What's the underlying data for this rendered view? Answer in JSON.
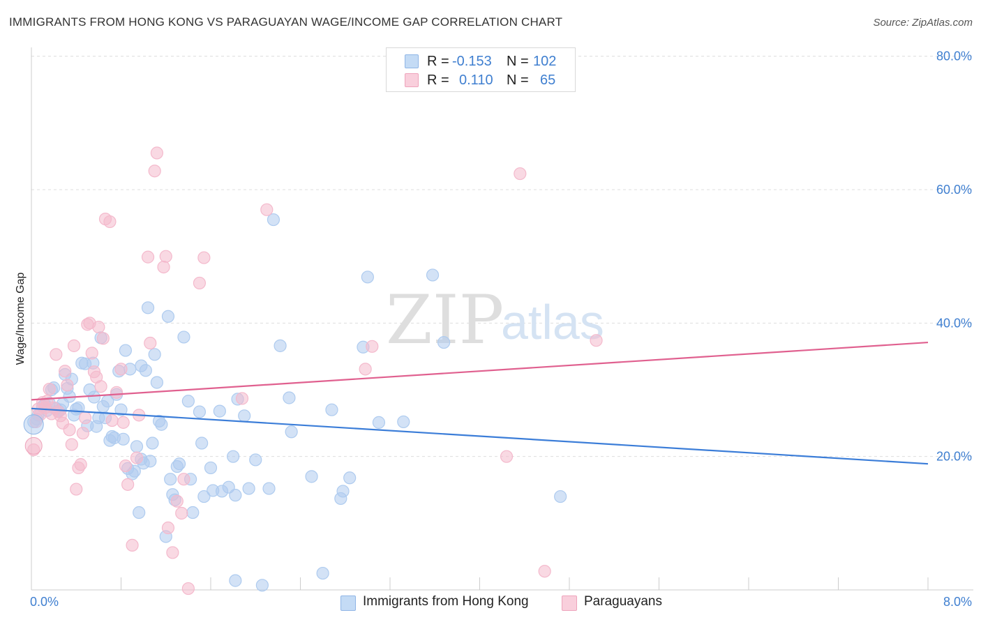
{
  "header": {
    "title": "IMMIGRANTS FROM HONG KONG VS PARAGUAYAN WAGE/INCOME GAP CORRELATION CHART",
    "source": "Source: ZipAtlas.com"
  },
  "watermark": {
    "zip": "ZIP",
    "atlas": "atlas"
  },
  "stats": {
    "rows": [
      {
        "r_label": "R =",
        "r_value": "-0.153",
        "n_label": "N =",
        "n_value": "102",
        "color": "#a9c8ef"
      },
      {
        "r_label": "R =",
        "r_value": "0.110",
        "n_label": "N =",
        "n_value": "65",
        "color": "#f4b3c8"
      }
    ]
  },
  "legend": {
    "items": [
      {
        "label": "Immigrants from Hong Kong",
        "color": "#a9c8ef"
      },
      {
        "label": "Paraguayans",
        "color": "#f4b3c8"
      }
    ]
  },
  "chart_data": {
    "type": "scatter",
    "title": "IMMIGRANTS FROM HONG KONG VS PARAGUAYAN WAGE/INCOME GAP CORRELATION CHART",
    "xlabel": "",
    "ylabel": "Wage/Income Gap",
    "xlim": [
      0,
      8
    ],
    "ylim": [
      0,
      80
    ],
    "x_tick_labels": [
      "0.0%",
      "8.0%"
    ],
    "y_tick_labels": [
      "20.0%",
      "40.0%",
      "60.0%",
      "80.0%"
    ],
    "y_ticks": [
      20,
      40,
      60,
      80
    ],
    "grid": true,
    "series": [
      {
        "name": "Immigrants from Hong Kong",
        "color": "#3b7dd8",
        "fill": "#aecbef",
        "trend": {
          "x": [
            0,
            8
          ],
          "y": [
            27.2,
            18.9
          ]
        },
        "points": [
          [
            0.02,
            25.2
          ],
          [
            0.05,
            25.6
          ],
          [
            0.06,
            26.2
          ],
          [
            0.1,
            27.5
          ],
          [
            0.12,
            27.8
          ],
          [
            0.14,
            26.9
          ],
          [
            0.16,
            28.0
          ],
          [
            0.18,
            30.0
          ],
          [
            0.2,
            30.3
          ],
          [
            0.22,
            27.2
          ],
          [
            0.24,
            26.8
          ],
          [
            0.26,
            27.0
          ],
          [
            0.28,
            27.9
          ],
          [
            0.3,
            32.3
          ],
          [
            0.32,
            30.2
          ],
          [
            0.34,
            29.0
          ],
          [
            0.36,
            31.6
          ],
          [
            0.38,
            26.2
          ],
          [
            0.4,
            27.1
          ],
          [
            0.42,
            27.3
          ],
          [
            0.45,
            34.0
          ],
          [
            0.48,
            33.9
          ],
          [
            0.5,
            24.6
          ],
          [
            0.52,
            30.0
          ],
          [
            0.55,
            34.0
          ],
          [
            0.56,
            28.9
          ],
          [
            0.58,
            24.5
          ],
          [
            0.6,
            25.8
          ],
          [
            0.62,
            37.8
          ],
          [
            0.64,
            27.5
          ],
          [
            0.66,
            25.8
          ],
          [
            0.68,
            28.3
          ],
          [
            0.7,
            22.4
          ],
          [
            0.72,
            23.0
          ],
          [
            0.74,
            22.8
          ],
          [
            0.76,
            29.3
          ],
          [
            0.78,
            32.8
          ],
          [
            0.8,
            27.0
          ],
          [
            0.82,
            22.6
          ],
          [
            0.84,
            35.9
          ],
          [
            0.86,
            18.2
          ],
          [
            0.88,
            33.1
          ],
          [
            0.9,
            17.4
          ],
          [
            0.92,
            17.8
          ],
          [
            0.94,
            21.5
          ],
          [
            0.96,
            11.6
          ],
          [
            0.98,
            33.6
          ],
          [
            1.0,
            19.0
          ],
          [
            1.02,
            32.9
          ],
          [
            1.04,
            42.3
          ],
          [
            1.06,
            19.3
          ],
          [
            1.08,
            22.0
          ],
          [
            1.1,
            35.3
          ],
          [
            1.12,
            31.1
          ],
          [
            1.14,
            25.3
          ],
          [
            1.16,
            24.8
          ],
          [
            1.2,
            8.0
          ],
          [
            1.22,
            41.0
          ],
          [
            1.24,
            16.6
          ],
          [
            1.26,
            14.3
          ],
          [
            1.28,
            13.5
          ],
          [
            1.3,
            18.5
          ],
          [
            1.32,
            18.9
          ],
          [
            1.36,
            37.9
          ],
          [
            1.4,
            28.3
          ],
          [
            1.42,
            16.6
          ],
          [
            1.44,
            11.6
          ],
          [
            1.5,
            26.7
          ],
          [
            1.52,
            22.0
          ],
          [
            1.54,
            14.0
          ],
          [
            1.6,
            18.3
          ],
          [
            1.62,
            14.9
          ],
          [
            1.68,
            26.8
          ],
          [
            1.7,
            14.8
          ],
          [
            1.76,
            15.4
          ],
          [
            1.8,
            20.0
          ],
          [
            1.82,
            14.2
          ],
          [
            1.84,
            28.6
          ],
          [
            1.9,
            26.1
          ],
          [
            1.94,
            15.2
          ],
          [
            2.0,
            19.5
          ],
          [
            2.12,
            15.2
          ],
          [
            2.16,
            55.5
          ],
          [
            2.22,
            36.6
          ],
          [
            2.3,
            28.8
          ],
          [
            2.32,
            23.7
          ],
          [
            2.5,
            17.0
          ],
          [
            2.68,
            27.0
          ],
          [
            2.76,
            13.7
          ],
          [
            2.78,
            14.8
          ],
          [
            2.84,
            16.8
          ],
          [
            2.96,
            36.4
          ],
          [
            3.0,
            46.9
          ],
          [
            3.1,
            25.1
          ],
          [
            3.32,
            25.2
          ],
          [
            3.58,
            47.2
          ],
          [
            3.68,
            37.1
          ],
          [
            4.72,
            14.0
          ],
          [
            2.06,
            0.7
          ],
          [
            2.6,
            2.5
          ],
          [
            1.82,
            1.4
          ],
          [
            0.98,
            19.6
          ]
        ]
      },
      {
        "name": "Paraguayans",
        "color": "#e0608f",
        "fill": "#f4b9cc",
        "trend": {
          "x": [
            0,
            8
          ],
          "y": [
            28.5,
            37.1
          ]
        },
        "points": [
          [
            0.02,
            21.0
          ],
          [
            0.04,
            25.2
          ],
          [
            0.06,
            27.1
          ],
          [
            0.08,
            26.3
          ],
          [
            0.1,
            28.1
          ],
          [
            0.12,
            27.3
          ],
          [
            0.14,
            28.3
          ],
          [
            0.16,
            30.1
          ],
          [
            0.18,
            26.4
          ],
          [
            0.2,
            27.3
          ],
          [
            0.22,
            35.3
          ],
          [
            0.24,
            26.7
          ],
          [
            0.26,
            26.1
          ],
          [
            0.28,
            25.0
          ],
          [
            0.3,
            32.8
          ],
          [
            0.32,
            30.7
          ],
          [
            0.34,
            24.0
          ],
          [
            0.36,
            21.8
          ],
          [
            0.38,
            36.6
          ],
          [
            0.4,
            15.1
          ],
          [
            0.42,
            18.3
          ],
          [
            0.44,
            18.8
          ],
          [
            0.46,
            23.5
          ],
          [
            0.48,
            25.8
          ],
          [
            0.5,
            39.8
          ],
          [
            0.52,
            40.0
          ],
          [
            0.54,
            35.5
          ],
          [
            0.56,
            32.7
          ],
          [
            0.58,
            31.9
          ],
          [
            0.6,
            39.4
          ],
          [
            0.62,
            30.5
          ],
          [
            0.64,
            37.7
          ],
          [
            0.66,
            55.6
          ],
          [
            0.7,
            55.2
          ],
          [
            0.72,
            25.4
          ],
          [
            0.76,
            29.6
          ],
          [
            0.8,
            33.1
          ],
          [
            0.82,
            25.1
          ],
          [
            0.84,
            18.6
          ],
          [
            0.86,
            15.8
          ],
          [
            0.9,
            6.7
          ],
          [
            0.94,
            19.8
          ],
          [
            0.96,
            26.2
          ],
          [
            1.04,
            49.9
          ],
          [
            1.06,
            37.0
          ],
          [
            1.1,
            62.8
          ],
          [
            1.12,
            65.5
          ],
          [
            1.18,
            48.4
          ],
          [
            1.2,
            50.0
          ],
          [
            1.22,
            9.3
          ],
          [
            1.26,
            5.6
          ],
          [
            1.3,
            13.3
          ],
          [
            1.34,
            11.5
          ],
          [
            1.36,
            16.6
          ],
          [
            1.4,
            0.2
          ],
          [
            1.5,
            46.0
          ],
          [
            1.54,
            49.8
          ],
          [
            1.88,
            28.7
          ],
          [
            2.1,
            57.0
          ],
          [
            2.98,
            33.1
          ],
          [
            3.04,
            36.5
          ],
          [
            4.24,
            20.0
          ],
          [
            4.36,
            62.4
          ],
          [
            4.58,
            2.8
          ],
          [
            5.04,
            37.4
          ]
        ]
      }
    ]
  }
}
